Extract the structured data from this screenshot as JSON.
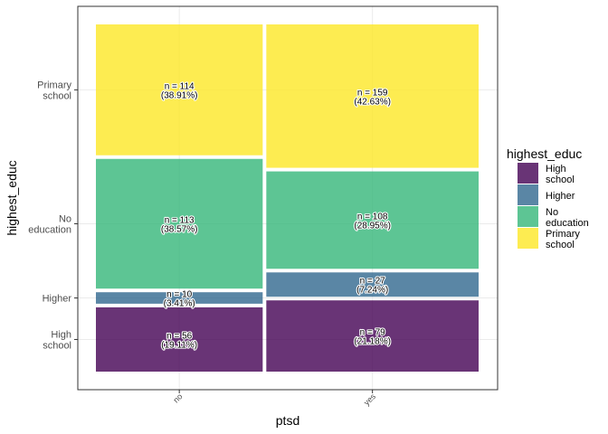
{
  "chart_data": {
    "type": "mosaic",
    "x_var": "ptsd",
    "fill_var": "highest_educ",
    "xlabel": "ptsd",
    "ylabel": "highest_educ",
    "legend_title": "highest_educ",
    "legend_position": "right",
    "grid": true,
    "categories": [
      "no",
      "yes"
    ],
    "fill_levels": [
      "High school",
      "Higher",
      "No education",
      "Primary school"
    ],
    "colors": {
      "High school": "#440154",
      "Higher": "#31688e",
      "No education": "#35b779",
      "Primary school": "#fde725"
    },
    "legend_labels": [
      [
        "High",
        "school"
      ],
      [
        "Higher"
      ],
      [
        "No",
        "education"
      ],
      [
        "Primary",
        "school"
      ]
    ],
    "y_tick_labels": [
      [
        "High",
        "school"
      ],
      [
        "Higher"
      ],
      [
        "No",
        "education"
      ],
      [
        "Primary",
        "school"
      ]
    ],
    "counts": {
      "no": [
        56,
        10,
        113,
        114
      ],
      "yes": [
        79,
        27,
        108,
        159
      ]
    },
    "cell_labels": {
      "no": [
        [
          "n = 56",
          "(19.11%)"
        ],
        [
          "n = 10",
          "(3.41%)"
        ],
        [
          "n = 113",
          "(38.57%)"
        ],
        [
          "n = 114",
          "(38.91%)"
        ]
      ],
      "yes": [
        [
          "n = 79",
          "(21.18%)"
        ],
        [
          "n = 27",
          "(7.24%)"
        ],
        [
          "n = 108",
          "(28.95%)"
        ],
        [
          "n = 159",
          "(42.63%)"
        ]
      ]
    }
  }
}
